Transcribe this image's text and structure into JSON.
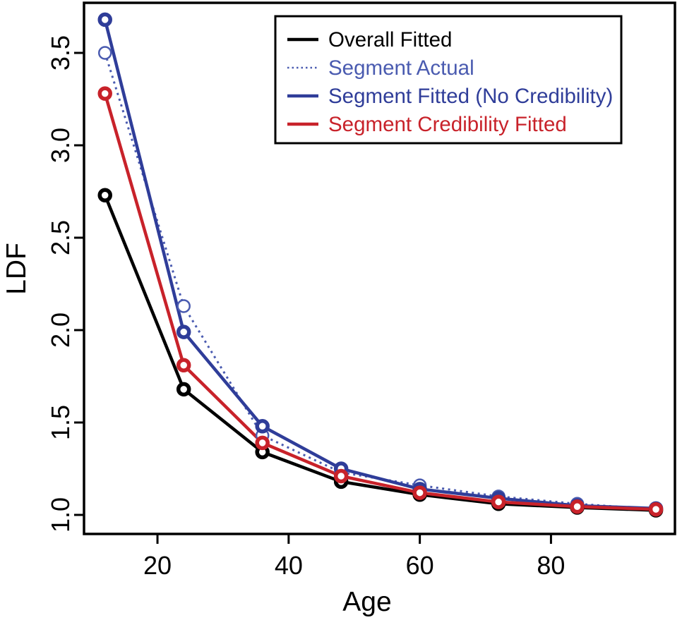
{
  "chart_data": {
    "type": "line",
    "title": "",
    "xlabel": "Age",
    "ylabel": "LDF",
    "x": [
      12,
      24,
      36,
      48,
      60,
      72,
      84,
      96
    ],
    "x_tick_labels": [
      "20",
      "40",
      "60",
      "80"
    ],
    "x_ticks": [
      20,
      40,
      60,
      80
    ],
    "y_tick_labels": [
      "1.0",
      "1.5",
      "2.0",
      "2.5",
      "3.0",
      "3.5"
    ],
    "y_ticks": [
      1.0,
      1.5,
      2.0,
      2.5,
      3.0,
      3.5
    ],
    "xlim": [
      8.8,
      98.9
    ],
    "ylim": [
      0.897,
      3.771
    ],
    "grid": false,
    "legend_position": "top-right",
    "series": [
      {
        "name": "Overall Fitted",
        "color": "#000000",
        "line_style": "solid",
        "marker": "bold-ring",
        "values": [
          2.73,
          1.68,
          1.34,
          1.18,
          1.11,
          1.06,
          1.04,
          1.025
        ]
      },
      {
        "name": "Segment Actual",
        "color": "#4A5BB0",
        "line_style": "dotted",
        "marker": "thin-ring",
        "values": [
          3.5,
          2.13,
          1.43,
          1.23,
          1.16,
          1.1,
          1.06,
          1.03
        ]
      },
      {
        "name": "Segment Fitted (No Credibility)",
        "color": "#2F3D99",
        "line_style": "solid",
        "marker": "bold-ring",
        "values": [
          3.68,
          1.99,
          1.48,
          1.25,
          1.14,
          1.09,
          1.05,
          1.035
        ]
      },
      {
        "name": "Segment Credibility Fitted",
        "color": "#C8222A",
        "line_style": "solid",
        "marker": "bold-ring",
        "values": [
          3.28,
          1.81,
          1.39,
          1.21,
          1.12,
          1.07,
          1.045,
          1.03
        ]
      }
    ]
  },
  "colors": {
    "background": "#ffffff",
    "axis": "#000000",
    "legend_border": "#000000"
  }
}
